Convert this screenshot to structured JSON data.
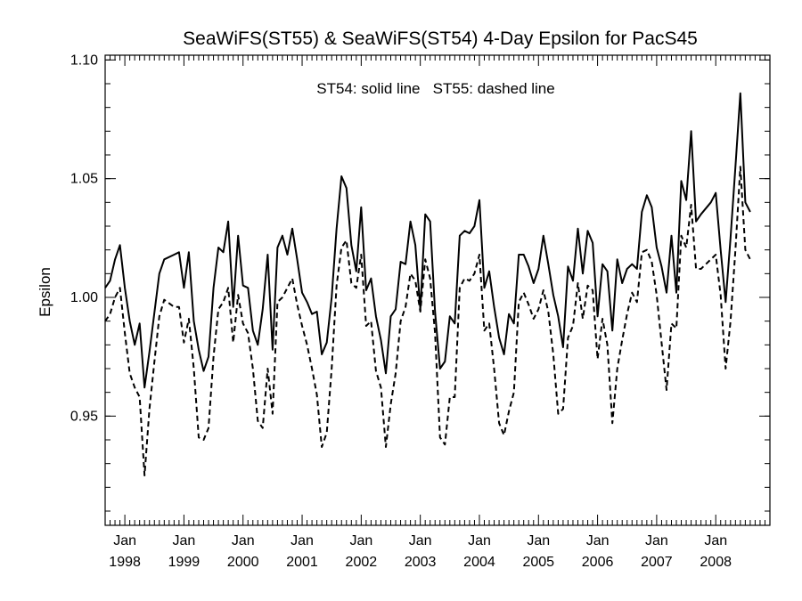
{
  "chart_data": {
    "type": "line",
    "title": "SeaWiFS(ST55) & SeaWiFS(ST54) 4-Day Epsilon for PacS45",
    "ylabel": "Epsilon",
    "xlabel": "",
    "annotation": "ST54: solid line   ST55: dashed line",
    "xlim": [
      "1997-09",
      "2008-12"
    ],
    "ylim": [
      0.904,
      1.102
    ],
    "y_ticks": [
      {
        "value": 0.95,
        "label": "0.95"
      },
      {
        "value": 1.0,
        "label": "1.00"
      },
      {
        "value": 1.05,
        "label": "1.05"
      },
      {
        "value": 1.1,
        "label": "1.10"
      }
    ],
    "x_ticks": [
      {
        "month": "1998-01",
        "label_month": "Jan",
        "label_year": "1998"
      },
      {
        "month": "1999-01",
        "label_month": "Jan",
        "label_year": "1999"
      },
      {
        "month": "2000-01",
        "label_month": "Jan",
        "label_year": "2000"
      },
      {
        "month": "2001-01",
        "label_month": "Jan",
        "label_year": "2001"
      },
      {
        "month": "2002-01",
        "label_month": "Jan",
        "label_year": "2002"
      },
      {
        "month": "2003-01",
        "label_month": "Jan",
        "label_year": "2003"
      },
      {
        "month": "2004-01",
        "label_month": "Jan",
        "label_year": "2004"
      },
      {
        "month": "2005-01",
        "label_month": "Jan",
        "label_year": "2005"
      },
      {
        "month": "2006-01",
        "label_month": "Jan",
        "label_year": "2006"
      },
      {
        "month": "2007-01",
        "label_month": "Jan",
        "label_year": "2007"
      },
      {
        "month": "2008-01",
        "label_month": "Jan",
        "label_year": "2008"
      }
    ],
    "grid": false,
    "series": [
      {
        "key": "ST54",
        "style": "solid",
        "color": "#000000",
        "points": [
          [
            "1997-09",
            1.004
          ],
          [
            "1997-10",
            1.007
          ],
          [
            "1997-11",
            1.016
          ],
          [
            "1997-12",
            1.022
          ],
          [
            "1998-01",
            1.004
          ],
          [
            "1998-02",
            0.99
          ],
          [
            "1998-03",
            0.98
          ],
          [
            "1998-04",
            0.989
          ],
          [
            "1998-05",
            0.962
          ],
          [
            "1998-06",
            0.977
          ],
          [
            "1998-08",
            1.01
          ],
          [
            "1998-09",
            1.016
          ],
          [
            "1998-11",
            1.018
          ],
          [
            "1998-12",
            1.019
          ],
          [
            "1999-01",
            1.004
          ],
          [
            "1999-02",
            1.019
          ],
          [
            "1999-03",
            0.99
          ],
          [
            "1999-04",
            0.978
          ],
          [
            "1999-05",
            0.969
          ],
          [
            "1999-06",
            0.975
          ],
          [
            "1999-07",
            1.004
          ],
          [
            "1999-08",
            1.021
          ],
          [
            "1999-09",
            1.019
          ],
          [
            "1999-10",
            1.032
          ],
          [
            "1999-11",
            0.996
          ],
          [
            "1999-12",
            1.026
          ],
          [
            "2000-01",
            1.005
          ],
          [
            "2000-02",
            1.004
          ],
          [
            "2000-03",
            0.986
          ],
          [
            "2000-04",
            0.98
          ],
          [
            "2000-05",
            0.995
          ],
          [
            "2000-06",
            1.018
          ],
          [
            "2000-07",
            0.978
          ],
          [
            "2000-08",
            1.021
          ],
          [
            "2000-09",
            1.026
          ],
          [
            "2000-10",
            1.018
          ],
          [
            "2000-11",
            1.029
          ],
          [
            "2000-12",
            1.016
          ],
          [
            "2001-01",
            1.002
          ],
          [
            "2001-02",
            0.998
          ],
          [
            "2001-03",
            0.993
          ],
          [
            "2001-04",
            0.994
          ],
          [
            "2001-05",
            0.976
          ],
          [
            "2001-06",
            0.981
          ],
          [
            "2001-07",
            1.0
          ],
          [
            "2001-08",
            1.029
          ],
          [
            "2001-09",
            1.051
          ],
          [
            "2001-10",
            1.046
          ],
          [
            "2001-11",
            1.022
          ],
          [
            "2001-12",
            1.011
          ],
          [
            "2002-01",
            1.038
          ],
          [
            "2002-02",
            1.003
          ],
          [
            "2002-03",
            1.008
          ],
          [
            "2002-04",
            0.992
          ],
          [
            "2002-05",
            0.982
          ],
          [
            "2002-06",
            0.968
          ],
          [
            "2002-07",
            0.992
          ],
          [
            "2002-08",
            0.995
          ],
          [
            "2002-09",
            1.015
          ],
          [
            "2002-10",
            1.014
          ],
          [
            "2002-11",
            1.032
          ],
          [
            "2002-12",
            1.022
          ],
          [
            "2003-01",
            0.995
          ],
          [
            "2003-02",
            1.035
          ],
          [
            "2003-03",
            1.032
          ],
          [
            "2003-04",
            0.994
          ],
          [
            "2003-05",
            0.97
          ],
          [
            "2003-06",
            0.973
          ],
          [
            "2003-07",
            0.992
          ],
          [
            "2003-08",
            0.989
          ],
          [
            "2003-09",
            1.026
          ],
          [
            "2003-10",
            1.028
          ],
          [
            "2003-11",
            1.027
          ],
          [
            "2003-12",
            1.03
          ],
          [
            "2004-01",
            1.041
          ],
          [
            "2004-02",
            1.004
          ],
          [
            "2004-03",
            1.011
          ],
          [
            "2004-04",
            0.996
          ],
          [
            "2004-05",
            0.983
          ],
          [
            "2004-06",
            0.976
          ],
          [
            "2004-07",
            0.993
          ],
          [
            "2004-08",
            0.989
          ],
          [
            "2004-09",
            1.018
          ],
          [
            "2004-10",
            1.018
          ],
          [
            "2004-11",
            1.013
          ],
          [
            "2004-12",
            1.006
          ],
          [
            "2005-01",
            1.012
          ],
          [
            "2005-02",
            1.026
          ],
          [
            "2005-03",
            1.014
          ],
          [
            "2005-04",
            1.001
          ],
          [
            "2005-05",
            0.992
          ],
          [
            "2005-06",
            0.979
          ],
          [
            "2005-07",
            1.013
          ],
          [
            "2005-08",
            1.007
          ],
          [
            "2005-09",
            1.029
          ],
          [
            "2005-10",
            1.01
          ],
          [
            "2005-11",
            1.028
          ],
          [
            "2005-12",
            1.023
          ],
          [
            "2006-01",
            0.992
          ],
          [
            "2006-02",
            1.014
          ],
          [
            "2006-03",
            1.011
          ],
          [
            "2006-04",
            0.986
          ],
          [
            "2006-05",
            1.016
          ],
          [
            "2006-06",
            1.006
          ],
          [
            "2006-07",
            1.012
          ],
          [
            "2006-08",
            1.014
          ],
          [
            "2006-09",
            1.012
          ],
          [
            "2006-10",
            1.036
          ],
          [
            "2006-11",
            1.043
          ],
          [
            "2006-12",
            1.038
          ],
          [
            "2007-01",
            1.021
          ],
          [
            "2007-02",
            1.013
          ],
          [
            "2007-03",
            1.002
          ],
          [
            "2007-04",
            1.026
          ],
          [
            "2007-05",
            1.002
          ],
          [
            "2007-06",
            1.049
          ],
          [
            "2007-07",
            1.041
          ],
          [
            "2007-08",
            1.07
          ],
          [
            "2007-09",
            1.032
          ],
          [
            "2007-10",
            1.035
          ],
          [
            "2007-12",
            1.04
          ],
          [
            "2008-01",
            1.044
          ],
          [
            "2008-02",
            1.02
          ],
          [
            "2008-03",
            0.998
          ],
          [
            "2008-04",
            1.025
          ],
          [
            "2008-05",
            1.055
          ],
          [
            "2008-06",
            1.086
          ],
          [
            "2008-07",
            1.04
          ],
          [
            "2008-08",
            1.036
          ]
        ]
      },
      {
        "key": "ST55",
        "style": "dashed",
        "color": "#000000",
        "points": [
          [
            "1997-09",
            0.99
          ],
          [
            "1997-10",
            0.993
          ],
          [
            "1997-11",
            1.0
          ],
          [
            "1997-12",
            1.004
          ],
          [
            "1998-01",
            0.985
          ],
          [
            "1998-02",
            0.968
          ],
          [
            "1998-03",
            0.962
          ],
          [
            "1998-04",
            0.958
          ],
          [
            "1998-05",
            0.925
          ],
          [
            "1998-06",
            0.953
          ],
          [
            "1998-07",
            0.973
          ],
          [
            "1998-08",
            0.992
          ],
          [
            "1998-09",
            0.999
          ],
          [
            "1998-11",
            0.996
          ],
          [
            "1998-12",
            0.996
          ],
          [
            "1999-01",
            0.981
          ],
          [
            "1999-02",
            0.991
          ],
          [
            "1999-03",
            0.97
          ],
          [
            "1999-04",
            0.941
          ],
          [
            "1999-05",
            0.94
          ],
          [
            "1999-06",
            0.945
          ],
          [
            "1999-07",
            0.975
          ],
          [
            "1999-08",
            0.995
          ],
          [
            "1999-09",
            0.998
          ],
          [
            "1999-10",
            1.004
          ],
          [
            "1999-11",
            0.981
          ],
          [
            "1999-12",
            1.001
          ],
          [
            "2000-01",
            0.989
          ],
          [
            "2000-02",
            0.985
          ],
          [
            "2000-03",
            0.97
          ],
          [
            "2000-04",
            0.948
          ],
          [
            "2000-05",
            0.945
          ],
          [
            "2000-06",
            0.97
          ],
          [
            "2000-07",
            0.951
          ],
          [
            "2000-08",
            0.998
          ],
          [
            "2000-09",
            1.0
          ],
          [
            "2000-10",
            1.004
          ],
          [
            "2000-11",
            1.008
          ],
          [
            "2000-12",
            0.997
          ],
          [
            "2001-01",
            0.988
          ],
          [
            "2001-02",
            0.98
          ],
          [
            "2001-03",
            0.97
          ],
          [
            "2001-04",
            0.959
          ],
          [
            "2001-05",
            0.937
          ],
          [
            "2001-06",
            0.943
          ],
          [
            "2001-07",
            0.97
          ],
          [
            "2001-08",
            1.005
          ],
          [
            "2001-09",
            1.021
          ],
          [
            "2001-10",
            1.024
          ],
          [
            "2001-11",
            1.006
          ],
          [
            "2001-12",
            1.004
          ],
          [
            "2002-01",
            1.018
          ],
          [
            "2002-02",
            0.988
          ],
          [
            "2002-03",
            0.99
          ],
          [
            "2002-04",
            0.969
          ],
          [
            "2002-05",
            0.962
          ],
          [
            "2002-06",
            0.937
          ],
          [
            "2002-07",
            0.955
          ],
          [
            "2002-08",
            0.968
          ],
          [
            "2002-09",
            0.99
          ],
          [
            "2002-10",
            0.996
          ],
          [
            "2002-11",
            1.01
          ],
          [
            "2002-12",
            1.007
          ],
          [
            "2003-01",
            0.994
          ],
          [
            "2003-02",
            1.016
          ],
          [
            "2003-03",
            1.008
          ],
          [
            "2003-04",
            0.985
          ],
          [
            "2003-05",
            0.941
          ],
          [
            "2003-06",
            0.938
          ],
          [
            "2003-07",
            0.958
          ],
          [
            "2003-08",
            0.958
          ],
          [
            "2003-09",
            1.004
          ],
          [
            "2003-10",
            1.008
          ],
          [
            "2003-11",
            1.007
          ],
          [
            "2003-12",
            1.01
          ],
          [
            "2004-01",
            1.018
          ],
          [
            "2004-02",
            0.986
          ],
          [
            "2004-03",
            0.989
          ],
          [
            "2004-04",
            0.97
          ],
          [
            "2004-05",
            0.947
          ],
          [
            "2004-06",
            0.942
          ],
          [
            "2004-07",
            0.952
          ],
          [
            "2004-08",
            0.96
          ],
          [
            "2004-09",
            0.998
          ],
          [
            "2004-10",
            1.002
          ],
          [
            "2004-11",
            0.997
          ],
          [
            "2004-12",
            0.991
          ],
          [
            "2005-01",
            0.995
          ],
          [
            "2005-02",
            1.003
          ],
          [
            "2005-03",
            0.994
          ],
          [
            "2005-04",
            0.976
          ],
          [
            "2005-05",
            0.951
          ],
          [
            "2005-06",
            0.953
          ],
          [
            "2005-07",
            0.983
          ],
          [
            "2005-08",
            0.988
          ],
          [
            "2005-09",
            1.006
          ],
          [
            "2005-10",
            0.991
          ],
          [
            "2005-11",
            1.005
          ],
          [
            "2005-12",
            1.003
          ],
          [
            "2006-01",
            0.974
          ],
          [
            "2006-02",
            0.991
          ],
          [
            "2006-03",
            0.98
          ],
          [
            "2006-04",
            0.947
          ],
          [
            "2006-05",
            0.97
          ],
          [
            "2006-06",
            0.982
          ],
          [
            "2006-07",
            0.993
          ],
          [
            "2006-08",
            1.002
          ],
          [
            "2006-09",
            0.998
          ],
          [
            "2006-10",
            1.019
          ],
          [
            "2006-11",
            1.02
          ],
          [
            "2006-12",
            1.015
          ],
          [
            "2007-01",
            1.001
          ],
          [
            "2007-02",
            0.981
          ],
          [
            "2007-03",
            0.961
          ],
          [
            "2007-04",
            0.989
          ],
          [
            "2007-05",
            0.987
          ],
          [
            "2007-06",
            1.026
          ],
          [
            "2007-07",
            1.021
          ],
          [
            "2007-08",
            1.039
          ],
          [
            "2007-09",
            1.012
          ],
          [
            "2007-10",
            1.012
          ],
          [
            "2007-12",
            1.016
          ],
          [
            "2008-01",
            1.018
          ],
          [
            "2008-02",
            1.001
          ],
          [
            "2008-03",
            0.97
          ],
          [
            "2008-04",
            0.99
          ],
          [
            "2008-05",
            1.02
          ],
          [
            "2008-06",
            1.055
          ],
          [
            "2008-07",
            1.02
          ],
          [
            "2008-08",
            1.016
          ]
        ]
      }
    ]
  }
}
